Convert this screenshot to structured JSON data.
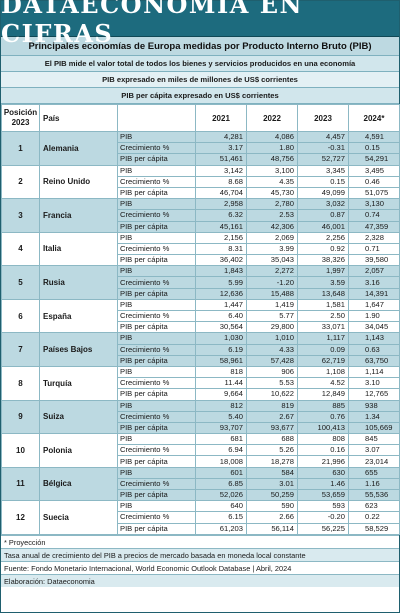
{
  "banner": "DATAECONOMIA EN CIFRAS",
  "subtitle": "Principales economías de Europa medidas por Producto Interno Bruto (PIB)",
  "info_lines": [
    "El PIB mide el valor total de todos los bienes y servicios producidos en una economía",
    "PIB expresado en miles de millones de US$ corrientes",
    "PIB per cápita expresado en US$ corrientes"
  ],
  "headers": {
    "pos_line1": "Posición",
    "pos_line2": "2023",
    "pais": "País",
    "indicador": "",
    "years": [
      "2021",
      "2022",
      "2023",
      "2024*"
    ]
  },
  "countries": [
    {
      "pos": "1",
      "name": "Alemania",
      "rows": [
        {
          "label": "PIB",
          "values": [
            "4,281",
            "4,086",
            "4,457",
            "4,591"
          ]
        },
        {
          "label": "Crecimiento %",
          "values": [
            "3.17",
            "1.80",
            "-0.31",
            "0.15"
          ]
        },
        {
          "label": "PIB per cápita",
          "values": [
            "51,461",
            "48,756",
            "52,727",
            "54,291"
          ]
        }
      ]
    },
    {
      "pos": "2",
      "name": "Reino Unido",
      "rows": [
        {
          "label": "PIB",
          "values": [
            "3,142",
            "3,100",
            "3,345",
            "3,495"
          ]
        },
        {
          "label": "Crecimiento %",
          "values": [
            "8.68",
            "4.35",
            "0.15",
            "0.46"
          ]
        },
        {
          "label": "PIB per cápita",
          "values": [
            "46,704",
            "45,730",
            "49,099",
            "51,075"
          ]
        }
      ]
    },
    {
      "pos": "3",
      "name": "Francia",
      "rows": [
        {
          "label": "PIB",
          "values": [
            "2,958",
            "2,780",
            "3,032",
            "3,130"
          ]
        },
        {
          "label": "Crecimiento %",
          "values": [
            "6.32",
            "2.53",
            "0.87",
            "0.74"
          ]
        },
        {
          "label": "PIB per cápita",
          "values": [
            "45,161",
            "42,306",
            "46,001",
            "47,359"
          ]
        }
      ]
    },
    {
      "pos": "4",
      "name": "Italia",
      "rows": [
        {
          "label": "PIB",
          "values": [
            "2,156",
            "2,069",
            "2,256",
            "2,328"
          ]
        },
        {
          "label": "Crecimiento %",
          "values": [
            "8.31",
            "3.99",
            "0.92",
            "0.71"
          ]
        },
        {
          "label": "PIB per cápita",
          "values": [
            "36,402",
            "35,043",
            "38,326",
            "39,580"
          ]
        }
      ]
    },
    {
      "pos": "5",
      "name": "Rusia",
      "rows": [
        {
          "label": "PIB",
          "values": [
            "1,843",
            "2,272",
            "1,997",
            "2,057"
          ]
        },
        {
          "label": "Crecimiento %",
          "values": [
            "5.99",
            "-1.20",
            "3.59",
            "3.16"
          ]
        },
        {
          "label": "PIB per cápita",
          "values": [
            "12,636",
            "15,488",
            "13,648",
            "14,391"
          ]
        }
      ]
    },
    {
      "pos": "6",
      "name": "España",
      "rows": [
        {
          "label": "PIB",
          "values": [
            "1,447",
            "1,419",
            "1,581",
            "1,647"
          ]
        },
        {
          "label": "Crecimiento %",
          "values": [
            "6.40",
            "5.77",
            "2.50",
            "1.90"
          ]
        },
        {
          "label": "PIB per cápita",
          "values": [
            "30,564",
            "29,800",
            "33,071",
            "34,045"
          ]
        }
      ]
    },
    {
      "pos": "7",
      "name": "Países Bajos",
      "rows": [
        {
          "label": "PIB",
          "values": [
            "1,030",
            "1,010",
            "1,117",
            "1,143"
          ]
        },
        {
          "label": "Crecimiento %",
          "values": [
            "6.19",
            "4.33",
            "0.09",
            "0.63"
          ]
        },
        {
          "label": "PIB per cápita",
          "values": [
            "58,961",
            "57,428",
            "62,719",
            "63,750"
          ]
        }
      ]
    },
    {
      "pos": "8",
      "name": "Turquía",
      "rows": [
        {
          "label": "PIB",
          "values": [
            "818",
            "906",
            "1,108",
            "1,114"
          ]
        },
        {
          "label": "Crecimiento %",
          "values": [
            "11.44",
            "5.53",
            "4.52",
            "3.10"
          ]
        },
        {
          "label": "PIB per cápita",
          "values": [
            "9,664",
            "10,622",
            "12,849",
            "12,765"
          ]
        }
      ]
    },
    {
      "pos": "9",
      "name": "Suiza",
      "rows": [
        {
          "label": "PIB",
          "values": [
            "812",
            "819",
            "885",
            "938"
          ]
        },
        {
          "label": "Crecimiento %",
          "values": [
            "5.40",
            "2.67",
            "0.76",
            "1.34"
          ]
        },
        {
          "label": "PIB per cápita",
          "values": [
            "93,707",
            "93,677",
            "100,413",
            "105,669"
          ]
        }
      ]
    },
    {
      "pos": "10",
      "name": "Polonia",
      "rows": [
        {
          "label": "PIB",
          "values": [
            "681",
            "688",
            "808",
            "845"
          ]
        },
        {
          "label": "Crecimiento %",
          "values": [
            "6.94",
            "5.26",
            "0.16",
            "3.07"
          ]
        },
        {
          "label": "PIB per cápita",
          "values": [
            "18,008",
            "18,278",
            "21,996",
            "23,014"
          ]
        }
      ]
    },
    {
      "pos": "11",
      "name": "Bélgica",
      "rows": [
        {
          "label": "PIB",
          "values": [
            "601",
            "584",
            "630",
            "655"
          ]
        },
        {
          "label": "Crecimiento %",
          "values": [
            "6.85",
            "3.01",
            "1.46",
            "1.16"
          ]
        },
        {
          "label": "PIB per cápita",
          "values": [
            "52,026",
            "50,259",
            "53,659",
            "55,536"
          ]
        }
      ]
    },
    {
      "pos": "12",
      "name": "Suecia",
      "rows": [
        {
          "label": "PIB",
          "values": [
            "640",
            "590",
            "593",
            "623"
          ]
        },
        {
          "label": "Crecimiento %",
          "values": [
            "6.15",
            "2.66",
            "-0.20",
            "0.22"
          ]
        },
        {
          "label": "PIB per cápita",
          "values": [
            "61,203",
            "56,114",
            "56,225",
            "58,529"
          ]
        }
      ]
    }
  ],
  "footer": [
    "* Proyección",
    "Tasa anual de crecimiento del PIB a precios de mercado basada en moneda local constante",
    "Fuente: Fondo Monetario Internacional, World Economic Outlook Database | Abril, 2024",
    "Elaboración: Dataeconomia"
  ],
  "colors": {
    "banner_bg": "#1d6b7e",
    "stripe": "#bcd9e1",
    "border": "#8cb8c4"
  }
}
